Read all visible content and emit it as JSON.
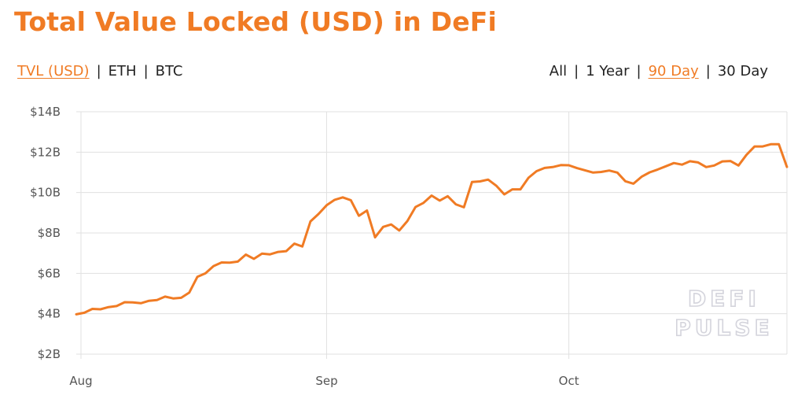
{
  "title": "Total Value Locked (USD) in DeFi",
  "metric_tabs": [
    {
      "label": "TVL (USD)",
      "active": true
    },
    {
      "label": "ETH",
      "active": false
    },
    {
      "label": "BTC",
      "active": false
    }
  ],
  "range_tabs": [
    {
      "label": "All",
      "active": false
    },
    {
      "label": "1 Year",
      "active": false
    },
    {
      "label": "90 Day",
      "active": true
    },
    {
      "label": "30 Day",
      "active": false
    }
  ],
  "separator": "|",
  "watermark": {
    "line1": "DEFI",
    "line2": "PULSE"
  },
  "colors": {
    "accent": "#f07b24",
    "grid": "#e0e0e0",
    "text": "#222222"
  },
  "chart_data": {
    "type": "line",
    "title": "Total Value Locked (USD) in DeFi",
    "xlabel": "",
    "ylabel": "",
    "x_ticks": [
      "Aug",
      "Sep",
      "Oct"
    ],
    "y_ticks": [
      "$2B",
      "$4B",
      "$6B",
      "$8B",
      "$10B",
      "$12B",
      "$14B"
    ],
    "ylim": [
      2,
      14
    ],
    "y_unit": "USD billions",
    "grid": true,
    "legend": "none",
    "x_start": "Aug 1",
    "x_end": "Oct 29",
    "series": [
      {
        "color": "#f07b24",
        "values": [
          3.97,
          4.05,
          4.24,
          4.22,
          4.33,
          4.38,
          4.57,
          4.56,
          4.52,
          4.64,
          4.68,
          4.85,
          4.76,
          4.79,
          5.05,
          5.83,
          6.0,
          6.36,
          6.54,
          6.53,
          6.58,
          6.93,
          6.72,
          6.98,
          6.94,
          7.06,
          7.1,
          7.47,
          7.33,
          8.57,
          8.94,
          9.37,
          9.64,
          9.76,
          9.62,
          8.85,
          9.11,
          7.78,
          8.3,
          8.42,
          8.12,
          8.59,
          9.28,
          9.49,
          9.85,
          9.6,
          9.82,
          9.42,
          9.27,
          10.52,
          10.55,
          10.64,
          10.34,
          9.91,
          10.16,
          10.16,
          10.73,
          11.06,
          11.22,
          11.26,
          11.36,
          11.35,
          11.21,
          11.1,
          10.99,
          11.02,
          11.09,
          10.99,
          10.56,
          10.44,
          10.78,
          11.0,
          11.14,
          11.3,
          11.46,
          11.38,
          11.55,
          11.49,
          11.26,
          11.34,
          11.54,
          11.56,
          11.34,
          11.87,
          12.28,
          12.28,
          12.39,
          12.39,
          11.27
        ]
      }
    ]
  }
}
